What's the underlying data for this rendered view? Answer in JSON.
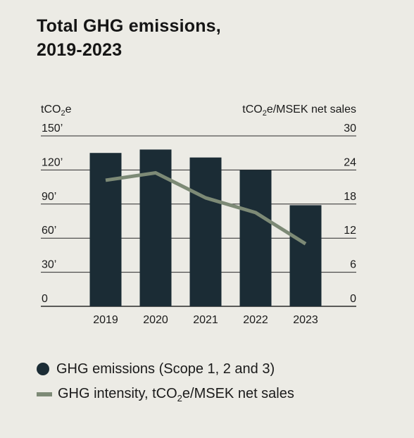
{
  "title_line1": "Total GHG emissions,",
  "title_line2": "2019-2023",
  "chart_data": {
    "type": "bar",
    "categories": [
      "2019",
      "2020",
      "2021",
      "2022",
      "2023"
    ],
    "series": [
      {
        "name": "GHG emissions (Scope 1, 2 and 3)",
        "kind": "bar",
        "axis": "left",
        "color": "#1b2c35",
        "values": [
          135,
          138,
          131,
          120,
          89
        ]
      },
      {
        "name": "GHG intensity, tCO2e/MSEK net sales",
        "kind": "line",
        "axis": "right",
        "color": "#7d8a76",
        "values": [
          22.2,
          23.5,
          19.1,
          16.5,
          11
        ]
      }
    ],
    "left_axis": {
      "unit_prefix": "tCO",
      "unit_sub": "2",
      "unit_suffix": "e",
      "ylim": [
        0,
        150
      ],
      "ticks": [
        "0",
        "30’",
        "60’",
        "90’",
        "120’",
        "150’"
      ]
    },
    "right_axis": {
      "unit_prefix": "tCO",
      "unit_sub": "2",
      "unit_suffix": "e/MSEK net sales",
      "ylim": [
        0,
        30
      ],
      "ticks": [
        "0",
        "6",
        "12",
        "18",
        "24",
        "30"
      ]
    },
    "grid": true,
    "legend_position": "bottom"
  },
  "legend": {
    "bar_label": "GHG emissions (Scope 1, 2 and 3)",
    "line_label_prefix": "GHG intensity, tCO",
    "line_label_sub": "2",
    "line_label_suffix": "e/MSEK net sales"
  }
}
